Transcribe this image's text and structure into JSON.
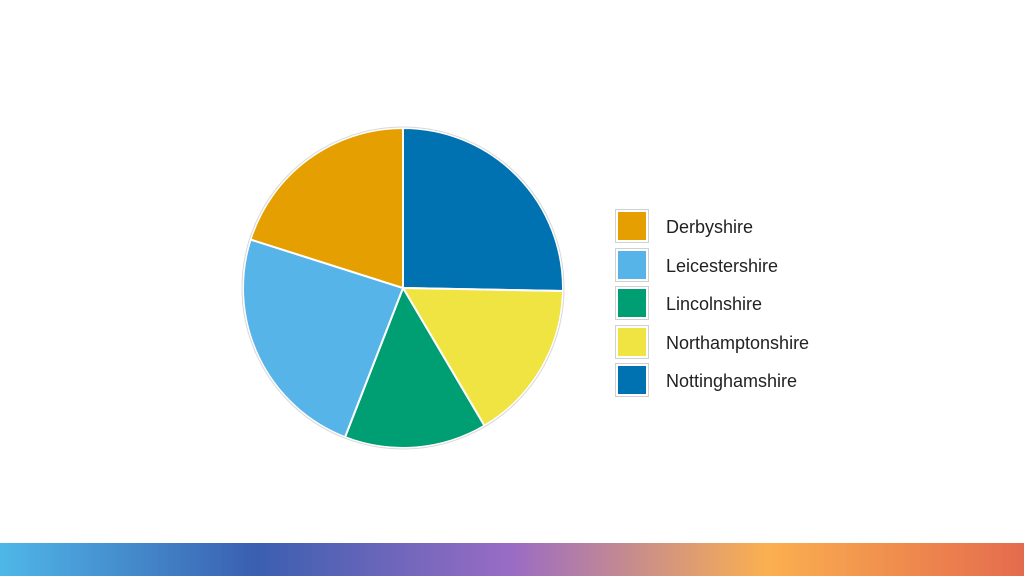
{
  "chart_data": {
    "type": "pie",
    "title": "",
    "slices": [
      {
        "label": "Nottinghamshire",
        "value": 25.3,
        "color": "#0072b2"
      },
      {
        "label": "Northamptonshire",
        "value": 16.2,
        "color": "#f0e442"
      },
      {
        "label": "Lincolnshire",
        "value": 14.4,
        "color": "#009e73"
      },
      {
        "label": "Leicestershire",
        "value": 24.0,
        "color": "#56b4e9"
      },
      {
        "label": "Derbyshire",
        "value": 20.1,
        "color": "#e69f00"
      }
    ],
    "legend": {
      "placement": "right",
      "entries": [
        {
          "label": "Derbyshire",
          "color": "#e69f00"
        },
        {
          "label": "Leicestershire",
          "color": "#56b4e9"
        },
        {
          "label": "Lincolnshire",
          "color": "#009e73"
        },
        {
          "label": "Northamptonshire",
          "color": "#f0e442"
        },
        {
          "label": "Nottinghamshire",
          "color": "#0072b2"
        }
      ]
    }
  },
  "footer": {
    "gradient_colors": [
      "#4fb7e8",
      "#3a5fb0",
      "#9a6cc4",
      "#fbb04f",
      "#e46b4e"
    ]
  }
}
